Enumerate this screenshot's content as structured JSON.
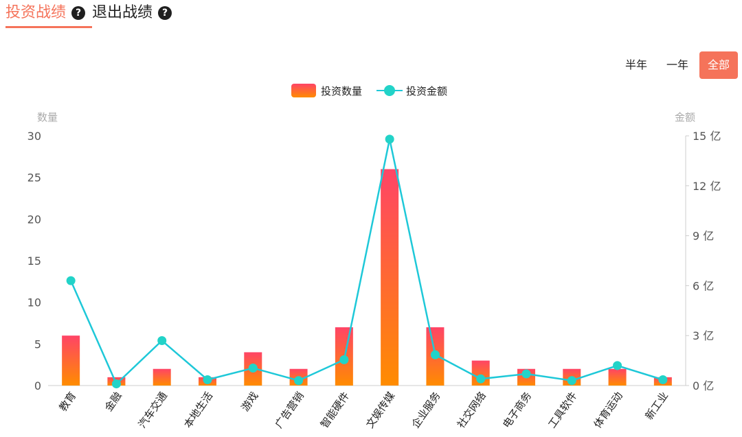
{
  "tabs": [
    {
      "label": "投资战绩",
      "active": true
    },
    {
      "label": "退出战绩",
      "active": false
    }
  ],
  "help_icon": "question-circle-icon",
  "range_buttons": [
    {
      "label": "半年",
      "active": false
    },
    {
      "label": "一年",
      "active": false
    },
    {
      "label": "全部",
      "active": true
    }
  ],
  "colors": {
    "accent": "#f5735a",
    "bar_top": "#ff4466",
    "bar_bottom": "#ff8c00",
    "line": "#1ec8d8",
    "point": "#22d3c8"
  },
  "chart_data": {
    "type": "bar",
    "categories": [
      "教育",
      "金融",
      "汽车交通",
      "本地生活",
      "游戏",
      "广告营销",
      "智能硬件",
      "文娱传媒",
      "企业服务",
      "社交网络",
      "电子商务",
      "工具软件",
      "体育运动",
      "新工业"
    ],
    "series": [
      {
        "name": "投资数量",
        "type": "bar",
        "axis": "left",
        "values": [
          6,
          1,
          2,
          1,
          4,
          2,
          7,
          26,
          7,
          3,
          2,
          2,
          2,
          1
        ]
      },
      {
        "name": "投资金额",
        "type": "line",
        "axis": "right",
        "values": [
          6.3,
          0.1,
          2.7,
          0.35,
          1.05,
          0.3,
          1.55,
          14.8,
          1.85,
          0.4,
          0.7,
          0.3,
          1.2,
          0.35
        ]
      }
    ],
    "y_left": {
      "label": "数量",
      "ticks": [
        "0",
        "5",
        "10",
        "15",
        "20",
        "25",
        "30"
      ],
      "min": 0,
      "max": 30
    },
    "y_right": {
      "label": "金额",
      "ticks": [
        "0 亿",
        "3 亿",
        "6 亿",
        "9 亿",
        "12 亿",
        "15 亿"
      ],
      "min": 0,
      "max": 15
    },
    "legend_position": "top-center",
    "grid": false
  }
}
